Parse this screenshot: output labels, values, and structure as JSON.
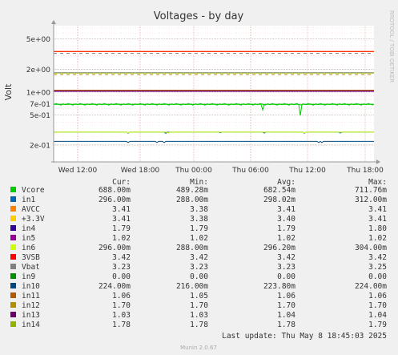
{
  "chart_data": {
    "type": "line",
    "title": "Voltages - by day",
    "ylabel": "Volt",
    "yscale": "log",
    "ylim": [
      0.12,
      7.5
    ],
    "yticks": [
      {
        "v": 5,
        "label": "5e+00"
      },
      {
        "v": 2,
        "label": "2e+00"
      },
      {
        "v": 1,
        "label": "1e+00"
      },
      {
        "v": 0.7,
        "label": "7e-01"
      },
      {
        "v": 0.5,
        "label": "5e-01"
      },
      {
        "v": 0.2,
        "label": "2e-01"
      }
    ],
    "xticks": [
      "Wed 12:00",
      "Wed 18:00",
      "Thu 00:00",
      "Thu 06:00",
      "Thu 12:00",
      "Thu 18:00"
    ],
    "watermark": "RRDTOOL / TOBI OETIKER",
    "headers": [
      "Cur:",
      "Min:",
      "Avg:",
      "Max:"
    ],
    "series": [
      {
        "name": "Vcore",
        "color": "#00cc00",
        "cur": "688.00m",
        "min": "489.28m",
        "avg": "682.54m",
        "max": "711.76m",
        "value": 0.688
      },
      {
        "name": "in1",
        "color": "#0066b3",
        "cur": "296.00m",
        "min": "288.00m",
        "avg": "298.02m",
        "max": "312.00m",
        "value": 0.296
      },
      {
        "name": "AVCC",
        "color": "#ff8000",
        "cur": "3.41",
        "min": "3.38",
        "avg": "3.41",
        "max": "3.41",
        "value": 3.41
      },
      {
        "name": "+3.3V",
        "color": "#ffcc00",
        "cur": "3.41",
        "min": "3.38",
        "avg": "3.40",
        "max": "3.41",
        "value": 3.41
      },
      {
        "name": "in4",
        "color": "#330099",
        "cur": "1.79",
        "min": "1.79",
        "avg": "1.79",
        "max": "1.80",
        "value": 1.79
      },
      {
        "name": "in5",
        "color": "#990099",
        "cur": "1.02",
        "min": "1.02",
        "avg": "1.02",
        "max": "1.02",
        "value": 1.02
      },
      {
        "name": "in6",
        "color": "#ccff00",
        "cur": "296.00m",
        "min": "288.00m",
        "avg": "296.20m",
        "max": "304.00m",
        "value": 0.296
      },
      {
        "name": "3VSB",
        "color": "#ff0000",
        "cur": "3.42",
        "min": "3.42",
        "avg": "3.42",
        "max": "3.42",
        "value": 3.42
      },
      {
        "name": "Vbat",
        "color": "#808080",
        "cur": "3.23",
        "min": "3.23",
        "avg": "3.23",
        "max": "3.25",
        "value": 3.23
      },
      {
        "name": "in9",
        "color": "#008f00",
        "cur": "0.00",
        "min": "0.00",
        "avg": "0.00",
        "max": "0.00",
        "value": 0
      },
      {
        "name": "in10",
        "color": "#00487d",
        "cur": "224.00m",
        "min": "216.00m",
        "avg": "223.80m",
        "max": "224.00m",
        "value": 0.224
      },
      {
        "name": "in11",
        "color": "#b35a00",
        "cur": "1.06",
        "min": "1.05",
        "avg": "1.06",
        "max": "1.06",
        "value": 1.06
      },
      {
        "name": "in12",
        "color": "#b38f00",
        "cur": "1.70",
        "min": "1.70",
        "avg": "1.70",
        "max": "1.70",
        "value": 1.7
      },
      {
        "name": "in13",
        "color": "#6b006b",
        "cur": "1.03",
        "min": "1.03",
        "avg": "1.04",
        "max": "1.04",
        "value": 1.03
      },
      {
        "name": "in14",
        "color": "#8fb300",
        "cur": "1.78",
        "min": "1.78",
        "avg": "1.78",
        "max": "1.79",
        "value": 1.78
      }
    ],
    "last_update": "Last update: Thu May  8 18:45:03 2025",
    "footer": "Munin 2.0.67"
  }
}
